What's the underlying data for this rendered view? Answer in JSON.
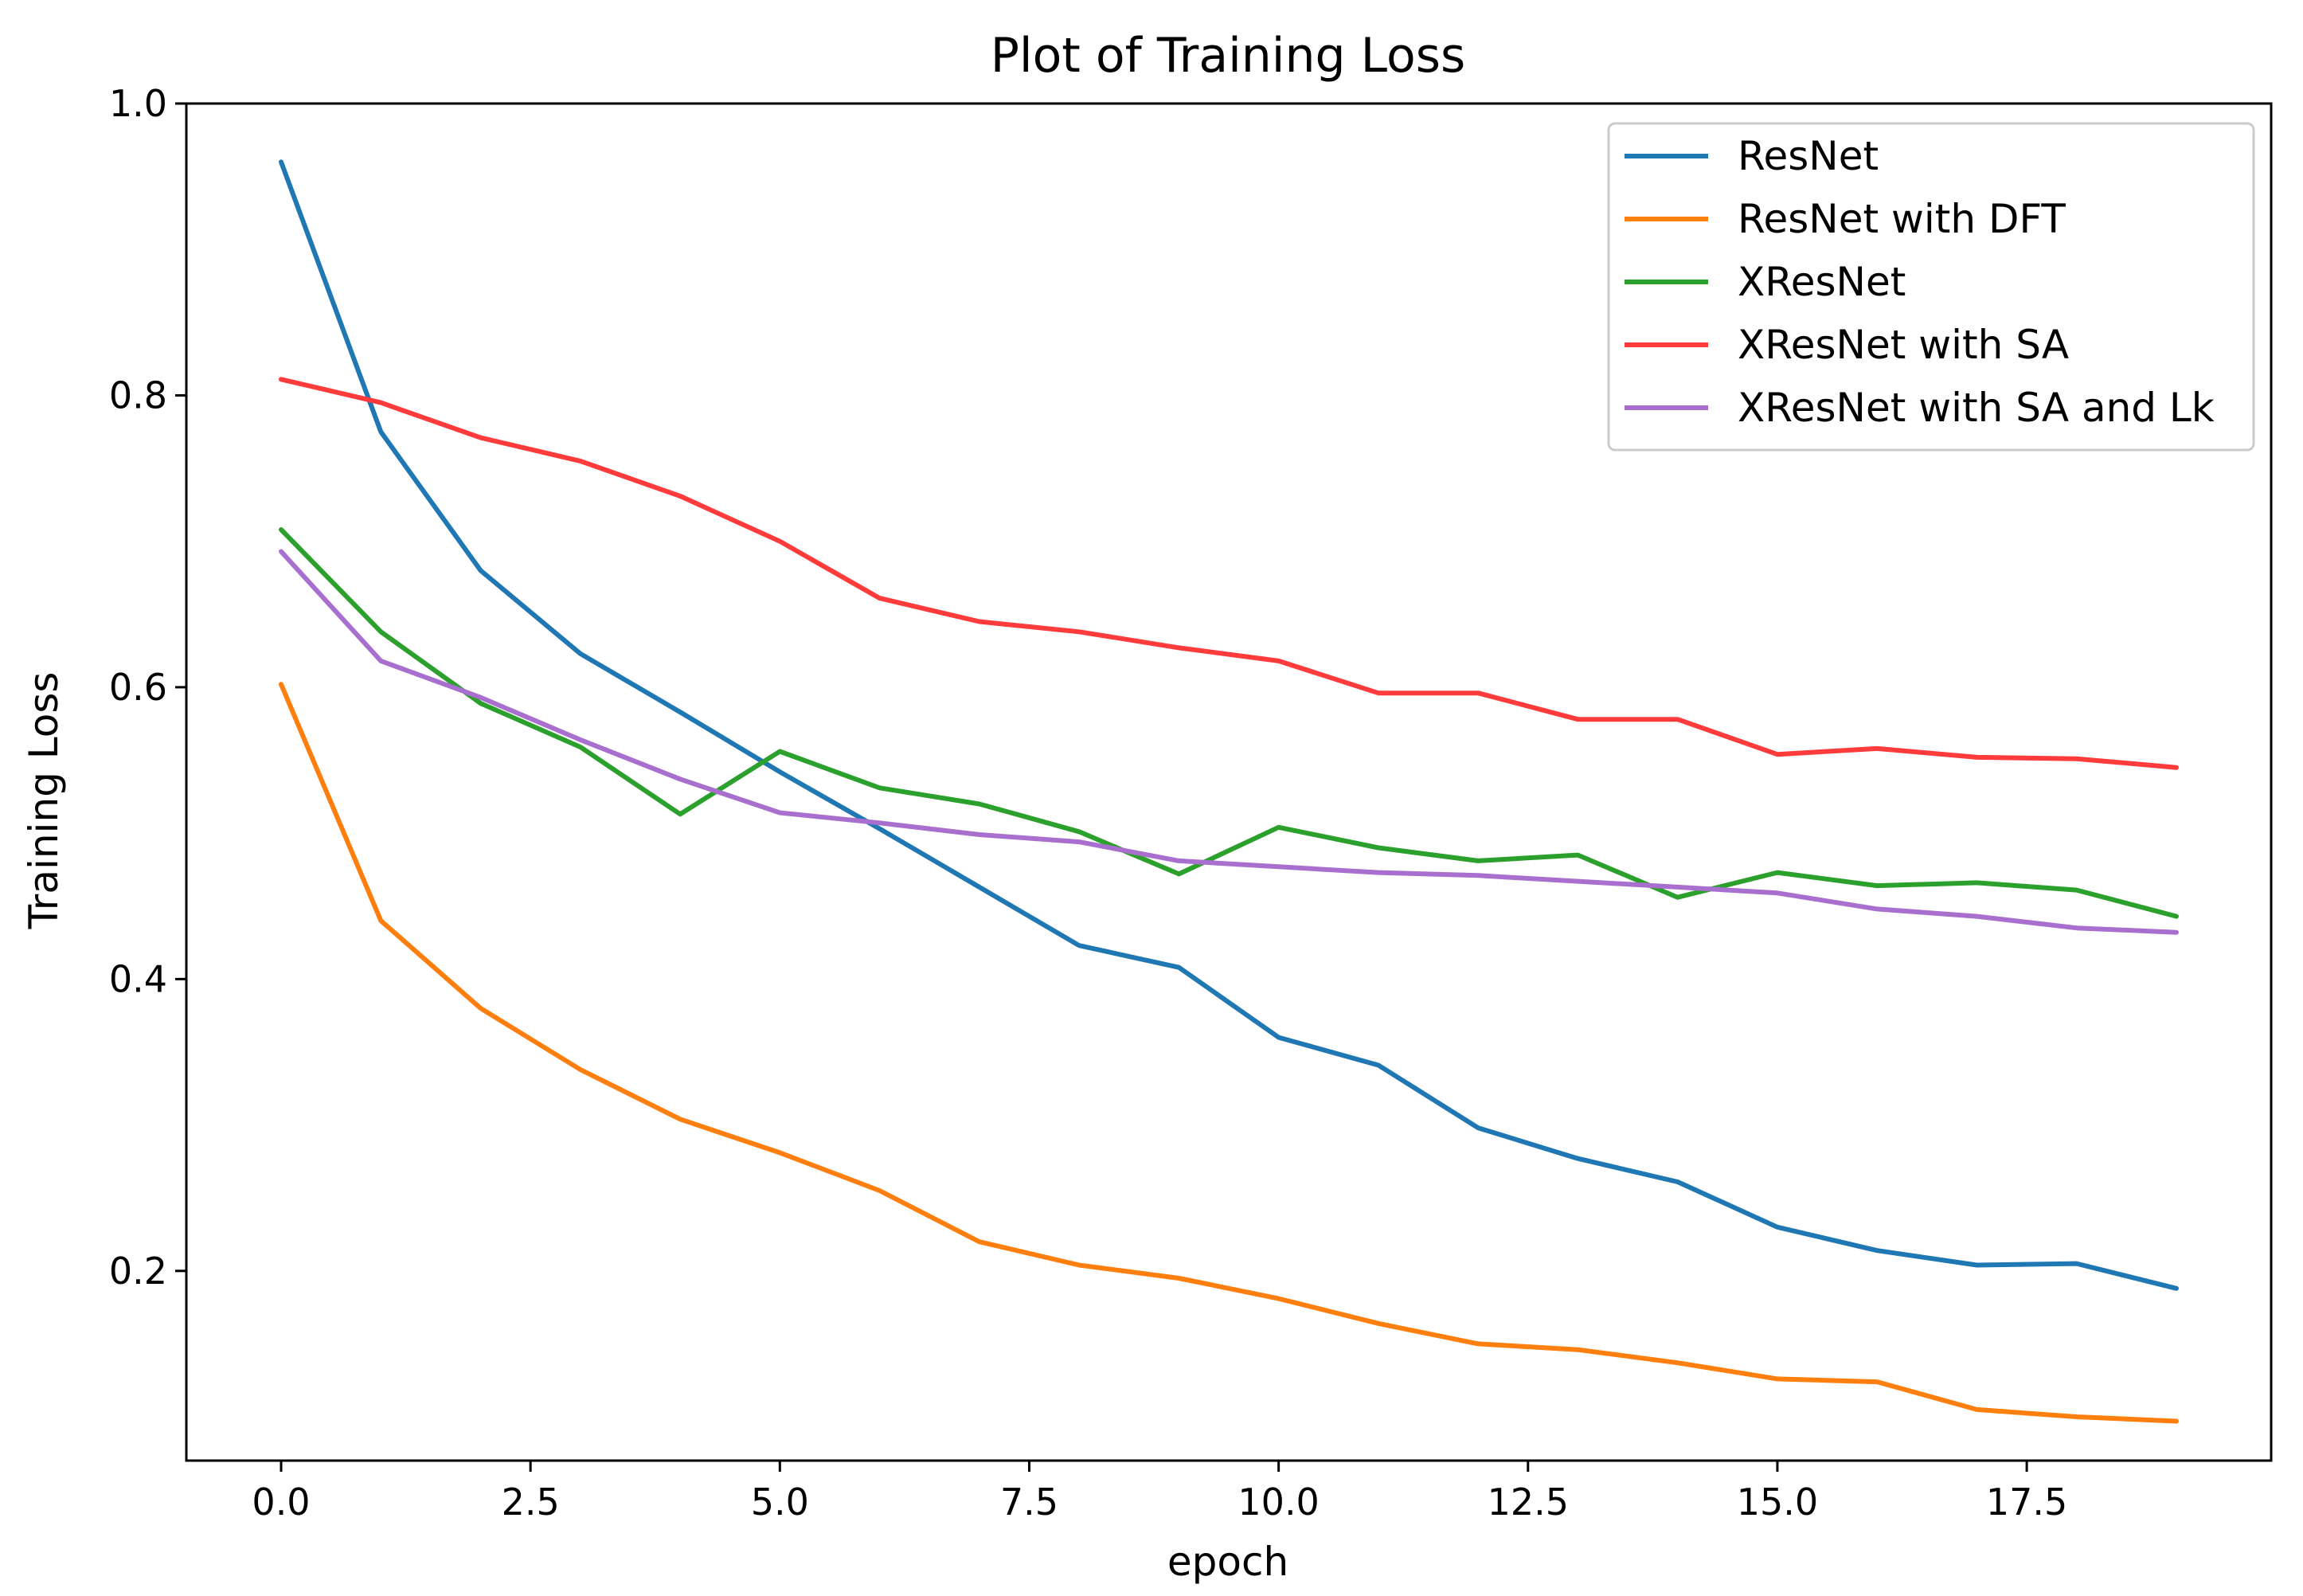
{
  "chart_data": {
    "type": "line",
    "title": "Plot of Training Loss",
    "xlabel": "epoch",
    "ylabel": "Training Loss",
    "xlim": [
      -0.95,
      19.95
    ],
    "ylim": [
      0.07,
      1.0
    ],
    "xticks": [
      0.0,
      2.5,
      5.0,
      7.5,
      10.0,
      12.5,
      15.0,
      17.5
    ],
    "xtick_labels": [
      "0.0",
      "2.5",
      "5.0",
      "7.5",
      "10.0",
      "12.5",
      "15.0",
      "17.5"
    ],
    "yticks": [
      0.2,
      0.4,
      0.6,
      0.8,
      1.0
    ],
    "ytick_labels": [
      "0.2",
      "0.4",
      "0.6",
      "0.8",
      "1.0"
    ],
    "grid": false,
    "legend_position": "top-right",
    "x": [
      0,
      1,
      2,
      3,
      4,
      5,
      6,
      7,
      8,
      9,
      10,
      11,
      12,
      13,
      14,
      15,
      16,
      17,
      18,
      19
    ],
    "series": [
      {
        "name": "ResNet",
        "color": "#1f77b4",
        "values": [
          0.96,
          0.775,
          0.68,
          0.623,
          0.583,
          0.542,
          0.503,
          0.463,
          0.423,
          0.408,
          0.36,
          0.341,
          0.298,
          0.277,
          0.261,
          0.23,
          0.214,
          0.204,
          0.205,
          0.188
        ]
      },
      {
        "name": "ResNet with DFT",
        "color": "#ff7f0e",
        "values": [
          0.602,
          0.44,
          0.38,
          0.338,
          0.304,
          0.281,
          0.255,
          0.22,
          0.204,
          0.195,
          0.181,
          0.164,
          0.15,
          0.146,
          0.137,
          0.126,
          0.124,
          0.105,
          0.1,
          0.097
        ]
      },
      {
        "name": "XResNet",
        "color": "#2ca02c",
        "values": [
          0.708,
          0.638,
          0.589,
          0.559,
          0.513,
          0.556,
          0.531,
          0.52,
          0.501,
          0.472,
          0.504,
          0.49,
          0.481,
          0.485,
          0.456,
          0.473,
          0.464,
          0.466,
          0.461,
          0.443
        ]
      },
      {
        "name": "XResNet with SA",
        "color": "#ff3b3b",
        "values": [
          0.811,
          0.795,
          0.771,
          0.755,
          0.731,
          0.7,
          0.661,
          0.645,
          0.638,
          0.627,
          0.618,
          0.596,
          0.596,
          0.578,
          0.578,
          0.554,
          0.558,
          0.552,
          0.551,
          0.545
        ]
      },
      {
        "name": "XResNet with SA and Lk",
        "color": "#a96fcf",
        "values": [
          0.693,
          0.618,
          0.593,
          0.564,
          0.537,
          0.514,
          0.507,
          0.499,
          0.494,
          0.481,
          0.477,
          0.473,
          0.471,
          0.467,
          0.463,
          0.459,
          0.448,
          0.443,
          0.435,
          0.432
        ]
      }
    ]
  }
}
